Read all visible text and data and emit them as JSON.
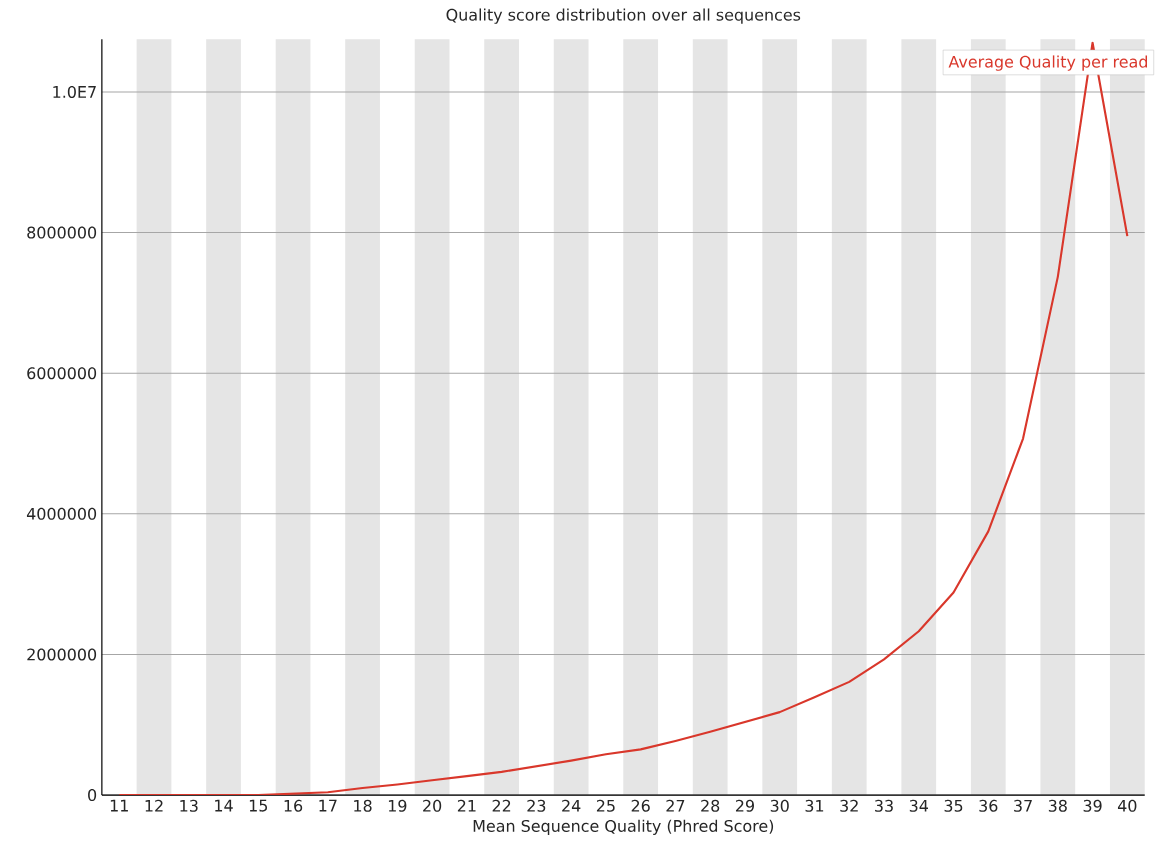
{
  "chart_data": {
    "type": "line",
    "title": "Quality score distribution over all sequences",
    "xlabel": "Mean Sequence Quality (Phred Score)",
    "x": [
      11,
      12,
      13,
      14,
      15,
      16,
      17,
      18,
      19,
      20,
      21,
      22,
      23,
      24,
      25,
      26,
      27,
      28,
      29,
      30,
      31,
      32,
      33,
      34,
      35,
      36,
      37,
      38,
      39,
      40
    ],
    "series": [
      {
        "name": "Average Quality per read",
        "color": "#d9372b",
        "values": [
          0,
          0,
          0,
          0,
          0,
          20000,
          40000,
          100000,
          150000,
          210000,
          270000,
          330000,
          410000,
          490000,
          580000,
          650000,
          770000,
          900000,
          1040000,
          1180000,
          1390000,
          1610000,
          1930000,
          2330000,
          2880000,
          3750000,
          5070000,
          7370000,
          10700000,
          7950000
        ]
      }
    ],
    "xlim": [
      10.5,
      40.5
    ],
    "xticks": [
      11,
      12,
      13,
      14,
      15,
      16,
      17,
      18,
      19,
      20,
      21,
      22,
      23,
      24,
      25,
      26,
      27,
      28,
      29,
      30,
      31,
      32,
      33,
      34,
      35,
      36,
      37,
      38,
      39,
      40
    ],
    "ylim": [
      0,
      10750000
    ],
    "yticks": [
      0,
      2000000,
      4000000,
      6000000,
      8000000,
      {
        "value": 10000000,
        "label": "1.0E7"
      }
    ],
    "grid": "y",
    "legend": "top right",
    "marker": "none",
    "line_style": "solid",
    "bands": [
      {
        "axis": "x",
        "from": 11.5,
        "to": 12.5,
        "color": "#e5e5e5"
      },
      {
        "axis": "x",
        "from": 13.5,
        "to": 14.5,
        "color": "#e5e5e5"
      },
      {
        "axis": "x",
        "from": 15.5,
        "to": 16.5,
        "color": "#e5e5e5"
      },
      {
        "axis": "x",
        "from": 17.5,
        "to": 18.5,
        "color": "#e5e5e5"
      },
      {
        "axis": "x",
        "from": 19.5,
        "to": 20.5,
        "color": "#e5e5e5"
      },
      {
        "axis": "x",
        "from": 21.5,
        "to": 22.5,
        "color": "#e5e5e5"
      },
      {
        "axis": "x",
        "from": 23.5,
        "to": 24.5,
        "color": "#e5e5e5"
      },
      {
        "axis": "x",
        "from": 25.5,
        "to": 26.5,
        "color": "#e5e5e5"
      },
      {
        "axis": "x",
        "from": 27.5,
        "to": 28.5,
        "color": "#e5e5e5"
      },
      {
        "axis": "x",
        "from": 29.5,
        "to": 30.5,
        "color": "#e5e5e5"
      },
      {
        "axis": "x",
        "from": 31.5,
        "to": 32.5,
        "color": "#e5e5e5"
      },
      {
        "axis": "x",
        "from": 33.5,
        "to": 34.5,
        "color": "#e5e5e5"
      },
      {
        "axis": "x",
        "from": 35.5,
        "to": 36.5,
        "color": "#e5e5e5"
      },
      {
        "axis": "x",
        "from": 37.5,
        "to": 38.5,
        "color": "#e5e5e5"
      },
      {
        "axis": "x",
        "from": 39.5,
        "to": 40.5,
        "color": "#e5e5e5"
      }
    ]
  }
}
